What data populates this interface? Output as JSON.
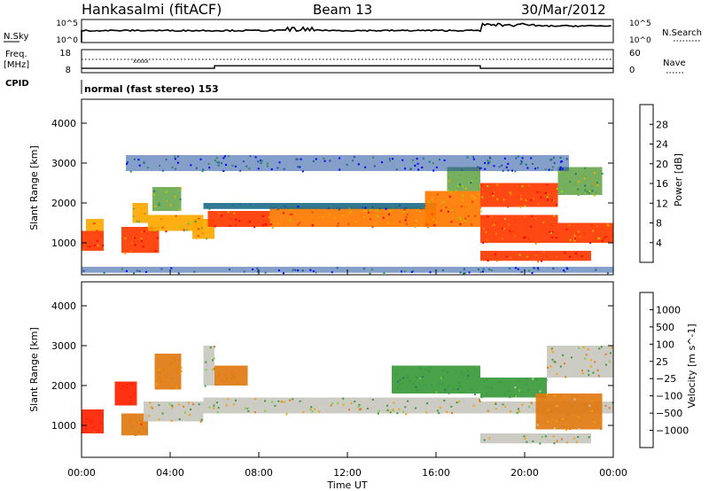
{
  "header": {
    "site": "Hankasalmi (fitACF)",
    "beam": "Beam 13",
    "date": "30/Mar/2012"
  },
  "noise_panel": {
    "left_label": "N.Sky",
    "right_label": "N.Search",
    "left_ticks": [
      "10^5",
      "10^0"
    ],
    "right_ticks": [
      "10^5",
      "10^0"
    ]
  },
  "freq_panel": {
    "label_line1": "Freq.",
    "label_line2": "[MHz]",
    "left_ticks": [
      "18",
      "8"
    ],
    "right_ticks": [
      "60",
      "0"
    ],
    "right_label": "Nave"
  },
  "cpid_panel": {
    "label": "CPID",
    "value": "normal (fast stereo) 153"
  },
  "power_panel": {
    "ylabel": "Slant Range [km]",
    "yticks": [
      "4000",
      "3000",
      "2000",
      "1000"
    ],
    "cbar_label": "Power [dB]",
    "cbar_ticks": [
      "28",
      "24",
      "20",
      "16",
      "12",
      "8",
      "4"
    ],
    "cbar_colors": [
      "#ff0000",
      "#ff3a00",
      "#ff7a00",
      "#ffa800",
      "#a4d400",
      "#6aa84f",
      "#2e8b57",
      "#1f6e8c",
      "#2050a0",
      "#0000ff"
    ]
  },
  "velocity_panel": {
    "ylabel": "Slant Range [km]",
    "yticks": [
      "4000",
      "3000",
      "2000",
      "1000"
    ],
    "cbar_label": "Velocity [m s^-1]",
    "cbar_ticks": [
      "1000",
      "500",
      "100",
      "25",
      "−25",
      "−100",
      "−500",
      "−1000"
    ],
    "cbar_colors": [
      "#2a4fa8",
      "#2f6e6e",
      "#3a9a3a",
      "#7ccf33",
      "#c8c8c0",
      "#c8c8c0",
      "#e07a10",
      "#f5a000",
      "#ff5500",
      "#ff0000"
    ]
  },
  "x_axis": {
    "ticks": [
      "00:00",
      "04:00",
      "08:00",
      "12:00",
      "16:00",
      "20:00",
      "00:00"
    ],
    "label": "Time UT"
  },
  "chart_data": {
    "type": "heatmap",
    "x_range_hours": [
      0,
      24
    ],
    "y_range_km": [
      200,
      4600
    ],
    "power": [
      {
        "t": [
          0.0,
          1.0
        ],
        "r": [
          800,
          1300
        ],
        "v": 28
      },
      {
        "t": [
          0.2,
          1.0
        ],
        "r": [
          1300,
          1600
        ],
        "v": 20
      },
      {
        "t": [
          1.8,
          3.5
        ],
        "r": [
          750,
          1400
        ],
        "v": 26
      },
      {
        "t": [
          2.3,
          3.0
        ],
        "r": [
          1500,
          2000
        ],
        "v": 20
      },
      {
        "t": [
          3.0,
          5.5
        ],
        "r": [
          1300,
          1700
        ],
        "v": 22
      },
      {
        "t": [
          3.2,
          4.5
        ],
        "r": [
          1800,
          2400
        ],
        "v": 16
      },
      {
        "t": [
          5.0,
          6.0
        ],
        "r": [
          1100,
          1600
        ],
        "v": 20
      },
      {
        "t": [
          5.7,
          8.5
        ],
        "r": [
          1400,
          1800
        ],
        "v": 26
      },
      {
        "t": [
          8.5,
          16.0
        ],
        "r": [
          1400,
          1900
        ],
        "v": 24
      },
      {
        "t": [
          5.5,
          16.0
        ],
        "r": [
          1850,
          2000
        ],
        "v": 10
      },
      {
        "t": [
          15.5,
          18.0
        ],
        "r": [
          1400,
          2300
        ],
        "v": 24
      },
      {
        "t": [
          16.5,
          18.0
        ],
        "r": [
          2300,
          2900
        ],
        "v": 16
      },
      {
        "t": [
          18.0,
          21.5
        ],
        "r": [
          1500,
          1700
        ],
        "v": 26
      },
      {
        "t": [
          18.0,
          21.5
        ],
        "r": [
          1900,
          2500
        ],
        "v": 26
      },
      {
        "t": [
          18.0,
          24.0
        ],
        "r": [
          1000,
          1500
        ],
        "v": 26
      },
      {
        "t": [
          18.0,
          23.0
        ],
        "r": [
          550,
          800
        ],
        "v": 26
      },
      {
        "t": [
          21.5,
          23.5
        ],
        "r": [
          2200,
          2900
        ],
        "v": 16
      },
      {
        "t": [
          2.0,
          22.0
        ],
        "r": [
          2800,
          3200
        ],
        "v": 6
      },
      {
        "t": [
          0.0,
          24.0
        ],
        "r": [
          250,
          400
        ],
        "v": 6
      }
    ],
    "velocity": [
      {
        "t": [
          0.0,
          1.0
        ],
        "r": [
          800,
          1400
        ],
        "v": -600
      },
      {
        "t": [
          1.8,
          3.0
        ],
        "r": [
          750,
          1300
        ],
        "v": -400
      },
      {
        "t": [
          1.5,
          2.5
        ],
        "r": [
          1500,
          2100
        ],
        "v": -700
      },
      {
        "t": [
          2.8,
          5.5
        ],
        "r": [
          1100,
          1600
        ],
        "v": 0
      },
      {
        "t": [
          3.3,
          4.5
        ],
        "r": [
          1900,
          2800
        ],
        "v": -200
      },
      {
        "t": [
          5.5,
          18.0
        ],
        "r": [
          1300,
          1700
        ],
        "v": 0
      },
      {
        "t": [
          5.5,
          6.0
        ],
        "r": [
          2000,
          3000
        ],
        "v": 0
      },
      {
        "t": [
          6.0,
          7.5
        ],
        "r": [
          2000,
          2500
        ],
        "v": -300
      },
      {
        "t": [
          14.0,
          18.0
        ],
        "r": [
          1800,
          2500
        ],
        "v": 200
      },
      {
        "t": [
          18.0,
          21.0
        ],
        "r": [
          1700,
          2200
        ],
        "v": 150
      },
      {
        "t": [
          18.0,
          24.0
        ],
        "r": [
          1300,
          1600
        ],
        "v": 0
      },
      {
        "t": [
          20.5,
          23.5
        ],
        "r": [
          900,
          1800
        ],
        "v": -150
      },
      {
        "t": [
          18.0,
          23.0
        ],
        "r": [
          550,
          800
        ],
        "v": 0
      },
      {
        "t": [
          21.0,
          24.0
        ],
        "r": [
          2200,
          3000
        ],
        "v": 0
      }
    ],
    "noise": {
      "before_18ut": 2.6,
      "after_18ut": 3.6
    },
    "freq_mhz": {
      "before_6ut": 9.9,
      "6_to_18ut": 11.0,
      "after_18ut": 9.9
    }
  }
}
